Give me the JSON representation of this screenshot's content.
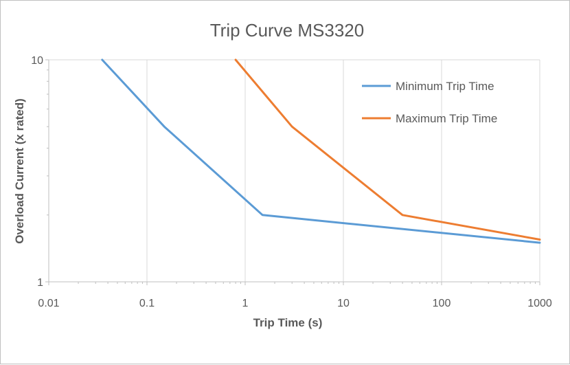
{
  "chart_data": {
    "type": "line",
    "title": "Trip Curve MS3320",
    "xlabel": "Trip Time (s)",
    "ylabel": "Overload Current (x rated)",
    "xscale": "log",
    "yscale": "log",
    "xlim": [
      0.01,
      1000
    ],
    "ylim": [
      1,
      10
    ],
    "x_ticks": [
      "0.01",
      "0.1",
      "1",
      "10",
      "100",
      "1000"
    ],
    "y_ticks": [
      "1",
      "10"
    ],
    "grid": "vertical-major",
    "legend_position": "top-right",
    "series": [
      {
        "name": "Minimum Trip Time",
        "color": "#5b9bd5",
        "x": [
          0.035,
          0.15,
          1.5,
          1000
        ],
        "y": [
          10,
          5,
          2,
          1.5
        ]
      },
      {
        "name": "Maximum Trip Time",
        "color": "#ed7d31",
        "x": [
          0.8,
          3,
          40,
          1000
        ],
        "y": [
          10,
          5,
          2,
          1.55
        ]
      }
    ]
  }
}
